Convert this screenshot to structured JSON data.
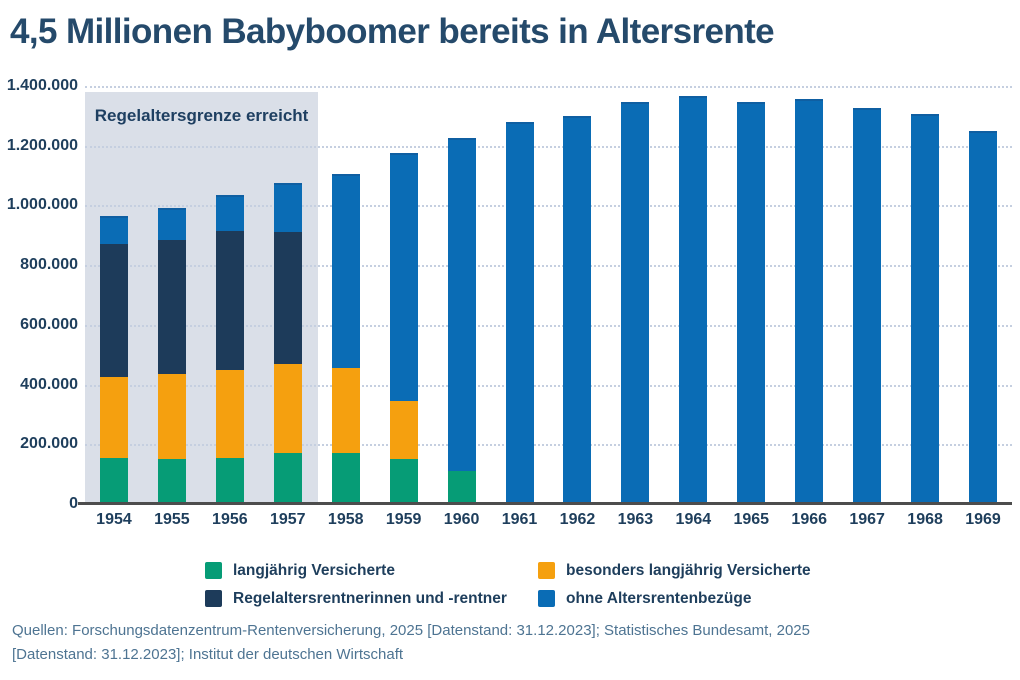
{
  "title": "4,5 Millionen Babyboomer bereits in Altersrente",
  "annotation": {
    "label": "Regelaltersgrenze erreicht",
    "covers_years": [
      "1954",
      "1957"
    ]
  },
  "footer": {
    "line1": "Quellen: Forschungsdatenzentrum-Rentenversicherung, 2025 [Datenstand: 31.12.2023]; Statistisches Bundesamt, 2025",
    "line2": "[Datenstand: 31.12.2023];  Institut der deutschen Wirtschaft"
  },
  "colors": {
    "title": "#254a6b",
    "axis_labels": "#1e3e5c",
    "shade_region": "#dadfe8",
    "gridline": "#c5cfe0",
    "baseline": "#4d4d4d",
    "footer_text": "#4e7492"
  },
  "chart_data": {
    "type": "bar",
    "stacked": true,
    "title": "4,5 Millionen Babyboomer bereits in Altersrente",
    "categories": [
      "1954",
      "1955",
      "1956",
      "1957",
      "1958",
      "1959",
      "1960",
      "1961",
      "1962",
      "1963",
      "1964",
      "1965",
      "1966",
      "1967",
      "1968",
      "1969"
    ],
    "series": [
      {
        "key": "langjaehrig-versicherte",
        "name": "langjährig Versicherte",
        "color": "#069c76",
        "values": [
          155000,
          150000,
          155000,
          170000,
          170000,
          150000,
          110000,
          0,
          0,
          0,
          0,
          0,
          0,
          0,
          0,
          0
        ]
      },
      {
        "key": "besonders-langjaehrig-versicherte",
        "name": "besonders langjährig Versicherte",
        "color": "#f5a00f",
        "values": [
          270000,
          285000,
          295000,
          300000,
          285000,
          195000,
          0,
          0,
          0,
          0,
          0,
          0,
          0,
          0,
          0,
          0
        ]
      },
      {
        "key": "regelaltersrentnerinnen-und-rentner",
        "name": "Regelaltersrentnerinnen und -rentner",
        "color": "#1d3b5a",
        "values": [
          445000,
          450000,
          465000,
          440000,
          0,
          0,
          0,
          0,
          0,
          0,
          0,
          0,
          0,
          0,
          0,
          0
        ]
      },
      {
        "key": "ohne-altersrentenbezuege",
        "name": "ohne Altersrentenbezüge",
        "color": "#0a6cb5",
        "values": [
          95000,
          105000,
          120000,
          165000,
          650000,
          830000,
          1115000,
          1280000,
          1300000,
          1345000,
          1365000,
          1345000,
          1355000,
          1325000,
          1305000,
          1250000
        ]
      }
    ],
    "totals": [
      965000,
      990000,
      1035000,
      1075000,
      1105000,
      1175000,
      1225000,
      1280000,
      1300000,
      1345000,
      1365000,
      1345000,
      1355000,
      1325000,
      1305000,
      1250000
    ],
    "xlabel": "",
    "ylabel": "",
    "ylim": [
      0,
      1400000
    ],
    "ytick_step": 200000,
    "ytick_labels": [
      "0",
      "200.000",
      "400.000",
      "600.000",
      "800.000",
      "1.000.000",
      "1.200.000",
      "1.400.000"
    ],
    "grid": "horizontal-dotted",
    "legend_position": "bottom"
  }
}
